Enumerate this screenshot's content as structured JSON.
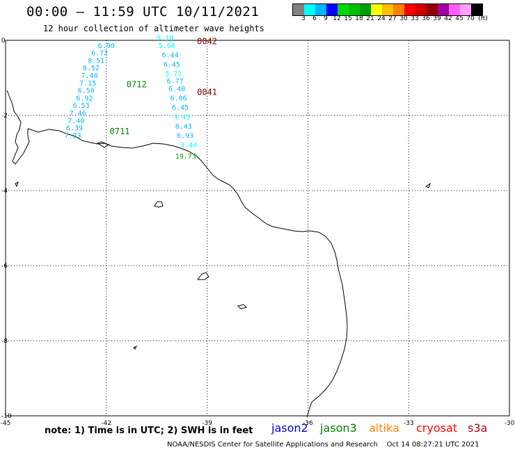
{
  "header": {
    "title": "00:00 – 11:59 UTC 10/11/2021",
    "subtitle": "12 hour collection of altimeter wave heights"
  },
  "legend": {
    "colors": [
      "#808080",
      "#00ffff",
      "#00b4ff",
      "#0000ff",
      "#00d800",
      "#00c000",
      "#00a000",
      "#ffff00",
      "#ffc000",
      "#ff8000",
      "#ff0000",
      "#d00000",
      "#900000",
      "#a000a0",
      "#ff60ff",
      "#ffa0ff",
      "#000000"
    ],
    "labels": [
      "3",
      "6",
      "9",
      "12",
      "15",
      "18",
      "21",
      "24",
      "27",
      "30",
      "33",
      "36",
      "39",
      "42",
      "45",
      "70",
      "(ft)"
    ]
  },
  "map": {
    "lon_ticks": [
      "-45",
      "-42",
      "-39",
      "-36",
      "-33",
      "-30"
    ],
    "lat_ticks": [
      "0",
      "-2",
      "-4",
      "-6",
      "-8",
      "-10"
    ],
    "lon_range": [
      -45,
      -30
    ],
    "lat_range": [
      -10,
      0
    ],
    "passes": [
      {
        "label": "0042",
        "color": "#800000",
        "lon": -39.3,
        "lat": -0.1
      },
      {
        "label": "0041",
        "color": "#800000",
        "lon": -39.3,
        "lat": -1.45
      },
      {
        "label": "0712",
        "color": "#008000",
        "lon": -41.4,
        "lat": -1.25
      },
      {
        "label": "0711",
        "color": "#008000",
        "lon": -41.9,
        "lat": -2.5
      }
    ],
    "observations": [
      {
        "v": "6.90",
        "lon": -42.25,
        "lat": -0.2,
        "color": "#00b4ff"
      },
      {
        "v": "6.72",
        "lon": -42.45,
        "lat": -0.4,
        "color": "#00b4ff"
      },
      {
        "v": "8.51",
        "lon": -42.55,
        "lat": -0.6,
        "color": "#00b4ff"
      },
      {
        "v": "6.52",
        "lon": -42.7,
        "lat": -0.8,
        "color": "#00b4ff"
      },
      {
        "v": "7.40",
        "lon": -42.75,
        "lat": -1.0,
        "color": "#00b4ff"
      },
      {
        "v": "7.15",
        "lon": -42.8,
        "lat": -1.2,
        "color": "#00b4ff"
      },
      {
        "v": "6.50",
        "lon": -42.85,
        "lat": -1.4,
        "color": "#00b4ff"
      },
      {
        "v": "6.92",
        "lon": -42.9,
        "lat": -1.6,
        "color": "#00b4ff"
      },
      {
        "v": "6.53",
        "lon": -43.0,
        "lat": -1.8,
        "color": "#00b4ff"
      },
      {
        "v": "7.46",
        "lon": -43.1,
        "lat": -2.0,
        "color": "#00b4ff"
      },
      {
        "v": "7.40",
        "lon": -43.15,
        "lat": -2.2,
        "color": "#00b4ff"
      },
      {
        "v": "6.39",
        "lon": -43.2,
        "lat": -2.4,
        "color": "#00b4ff"
      },
      {
        "v": "7.23",
        "lon": -43.25,
        "lat": -2.6,
        "color": "#00b4ff"
      },
      {
        "v": "5.18",
        "lon": -40.5,
        "lat": -0.0,
        "color": "#00ffff"
      },
      {
        "v": "5.94",
        "lon": -40.45,
        "lat": -0.2,
        "color": "#00ffff"
      },
      {
        "v": "6.44",
        "lon": -40.35,
        "lat": -0.45,
        "color": "#00b4ff"
      },
      {
        "v": "6.45",
        "lon": -40.3,
        "lat": -0.7,
        "color": "#00b4ff"
      },
      {
        "v": "5.77",
        "lon": -40.25,
        "lat": -0.95,
        "color": "#00ffff"
      },
      {
        "v": "6.77",
        "lon": -40.2,
        "lat": -1.15,
        "color": "#00b4ff"
      },
      {
        "v": "6.40",
        "lon": -40.15,
        "lat": -1.35,
        "color": "#00b4ff"
      },
      {
        "v": "6.06",
        "lon": -40.1,
        "lat": -1.6,
        "color": "#00b4ff"
      },
      {
        "v": "6.45",
        "lon": -40.05,
        "lat": -1.85,
        "color": "#00b4ff"
      },
      {
        "v": "4.43",
        "lon": -40.0,
        "lat": -2.1,
        "color": "#00ffff"
      },
      {
        "v": "6.43",
        "lon": -39.95,
        "lat": -2.35,
        "color": "#00b4ff"
      },
      {
        "v": "6.93",
        "lon": -39.9,
        "lat": -2.6,
        "color": "#00b4ff"
      },
      {
        "v": "3.44",
        "lon": -39.8,
        "lat": -2.85,
        "color": "#00ffff"
      },
      {
        "v": "19.73",
        "lon": -39.95,
        "lat": -3.15,
        "color": "#00a000"
      }
    ]
  },
  "note": "note: 1) Time is in UTC; 2) SWH is in feet",
  "satellites": [
    {
      "name": "jason2",
      "color": "#0000cc"
    },
    {
      "name": "jason3",
      "color": "#008000"
    },
    {
      "name": "altika",
      "color": "#ff8000"
    },
    {
      "name": "cryosat",
      "color": "#ff0000"
    },
    {
      "name": "s3a",
      "color": "#b00000"
    }
  ],
  "footer": "NOAA/NESDIS Center for Satellite Applications and Research    Oct 14 08:27:21 UTC 2021"
}
